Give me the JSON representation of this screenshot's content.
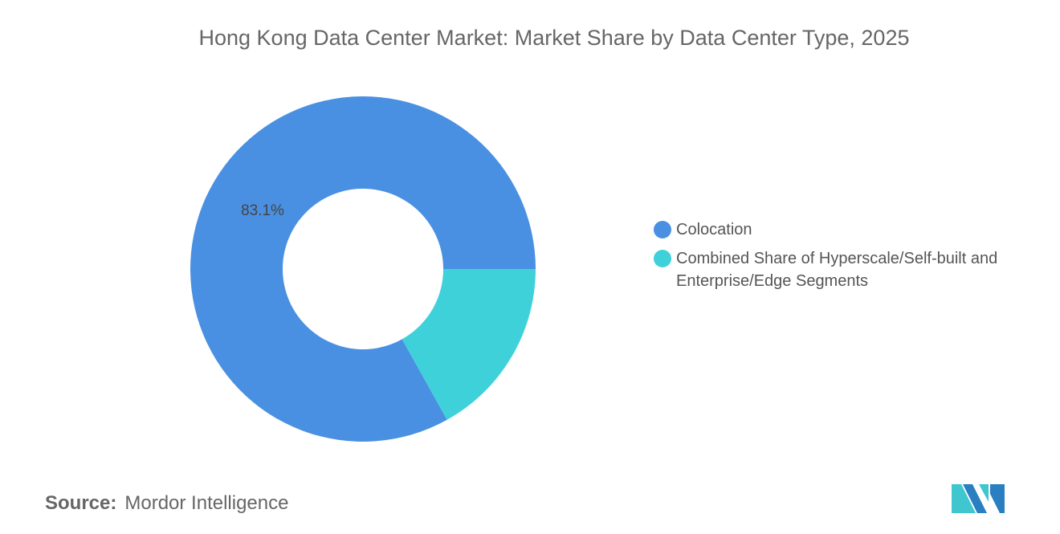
{
  "chart_data": {
    "type": "pie",
    "subtype": "donut",
    "title": "Hong Kong Data Center Market: Market Share by Data Center Type, 2025",
    "categories": [
      "Colocation",
      "Combined Share of Hyperscale/Self-built and Enterprise/Edge Segments"
    ],
    "values": [
      83.1,
      16.9
    ],
    "data_labels": [
      "83.1%"
    ],
    "colors": [
      "#4a90e2",
      "#3fd1da"
    ],
    "legend_position": "right"
  },
  "source": {
    "label": "Source:",
    "value": "Mordor Intelligence"
  },
  "logo": {
    "name": "Mordor Intelligence logo",
    "colors": [
      "#2a7fc1",
      "#3fc6cf"
    ]
  }
}
